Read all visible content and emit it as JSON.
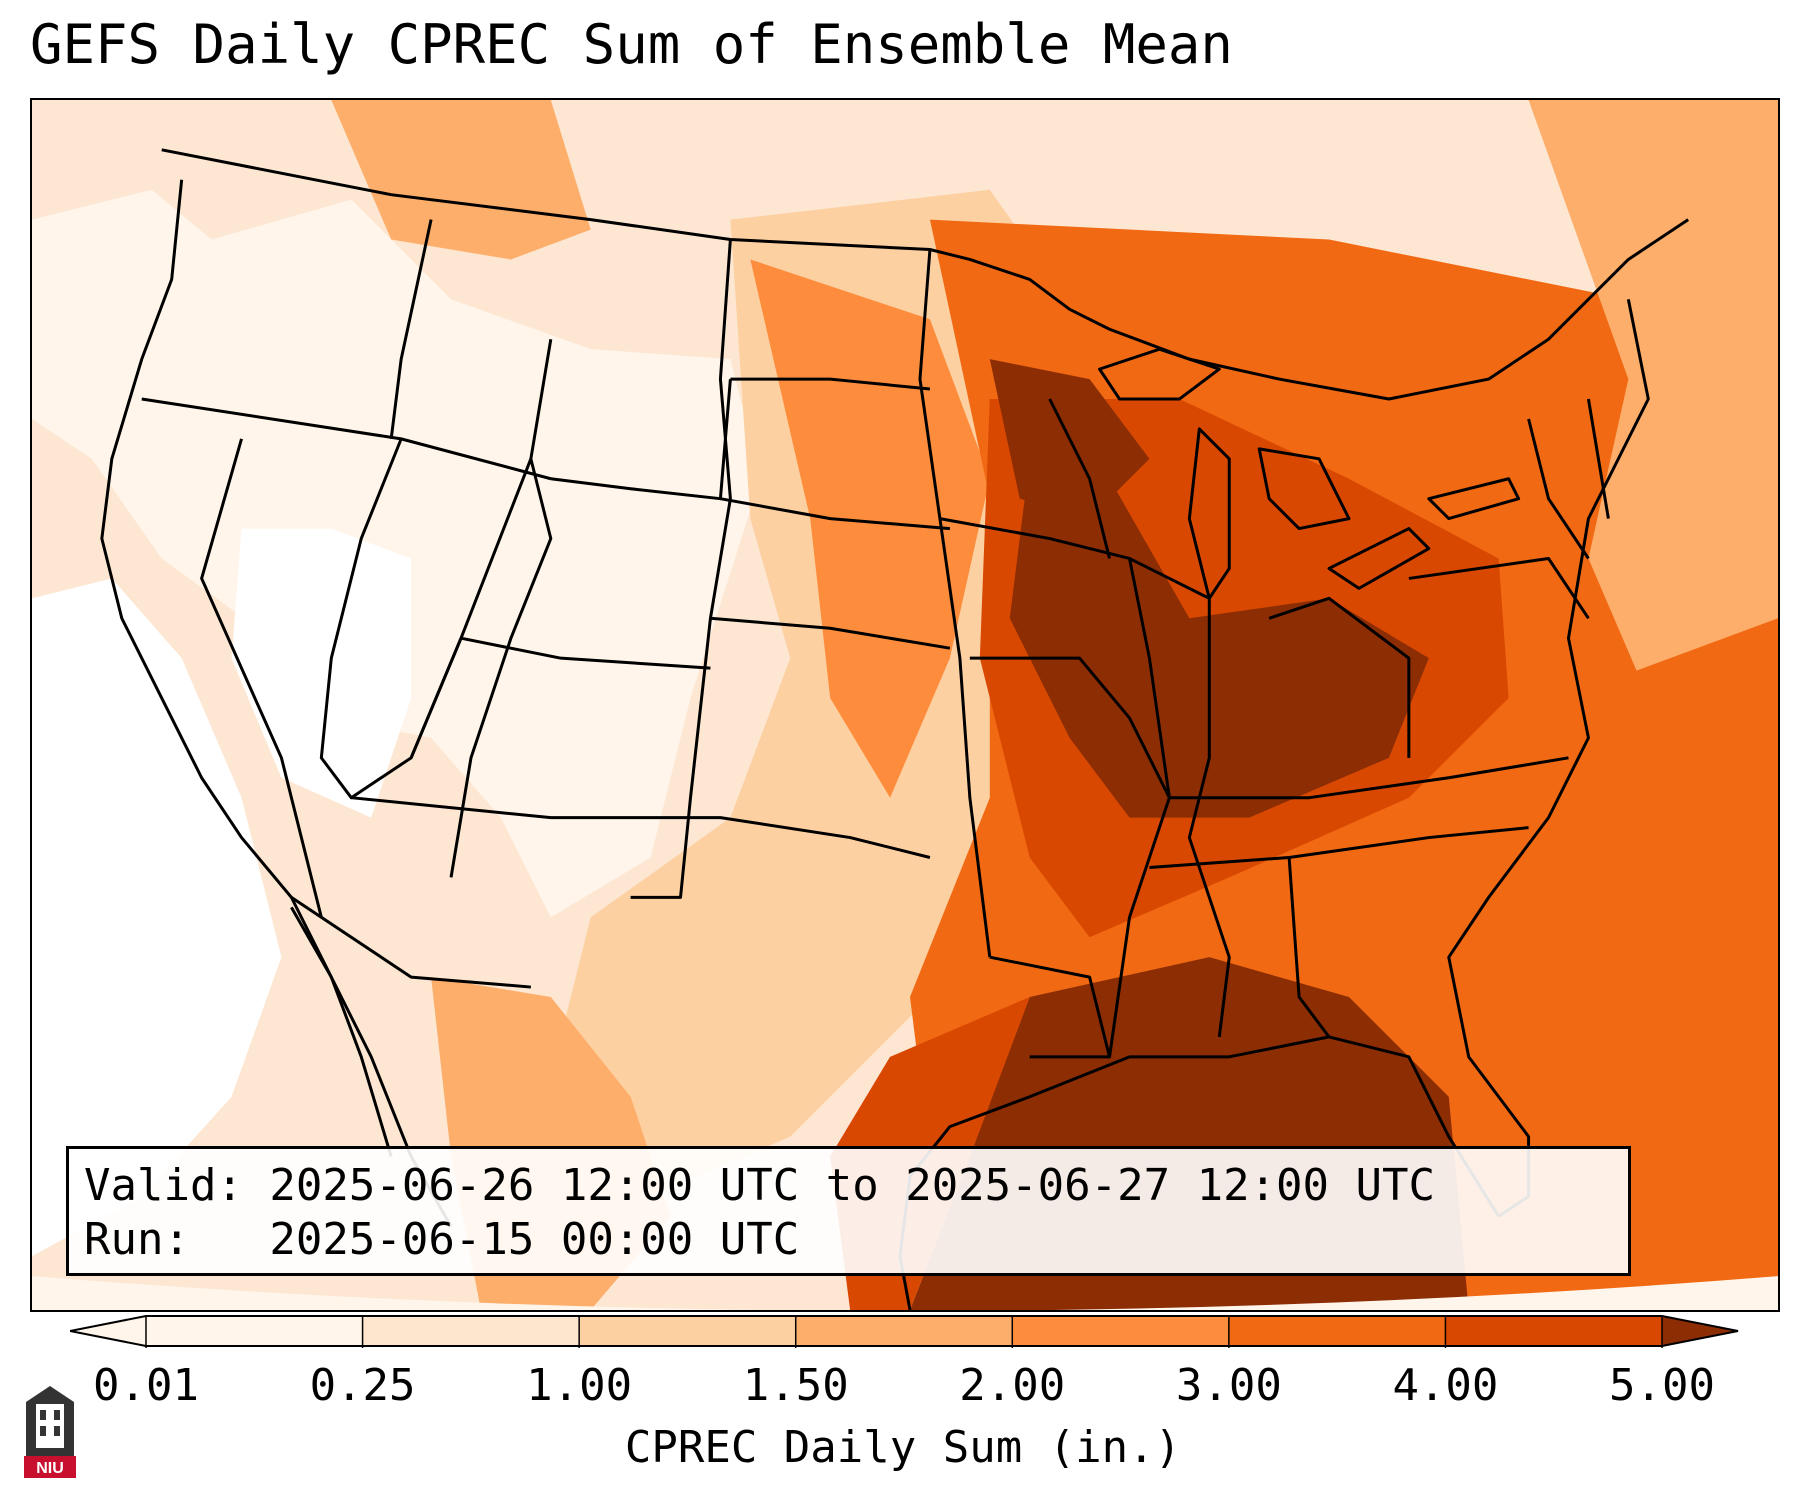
{
  "title": "GEFS Daily CPREC Sum of Ensemble Mean",
  "info": {
    "valid_line": "Valid: 2025-06-26 12:00 UTC to 2025-06-27 12:00 UTC",
    "run_line": "Run:   2025-06-15 00:00 UTC"
  },
  "colorbar": {
    "label": "CPREC Daily Sum (in.)",
    "ticks": [
      "0.01",
      "0.25",
      "1.00",
      "1.50",
      "2.00",
      "3.00",
      "4.00",
      "5.00"
    ],
    "colors": [
      "#fff5eb",
      "#fee6ce",
      "#fdd0a2",
      "#fdae6b",
      "#fd8d3c",
      "#f16913",
      "#d94801",
      "#8c2d04"
    ]
  },
  "map": {
    "projection": "lambert-conformal",
    "region": "Continental United States",
    "boundaries": [
      "state-boundaries",
      "country-boundaries",
      "coastlines"
    ]
  },
  "logo": {
    "text": "NIU",
    "color": "#c8102e"
  }
}
